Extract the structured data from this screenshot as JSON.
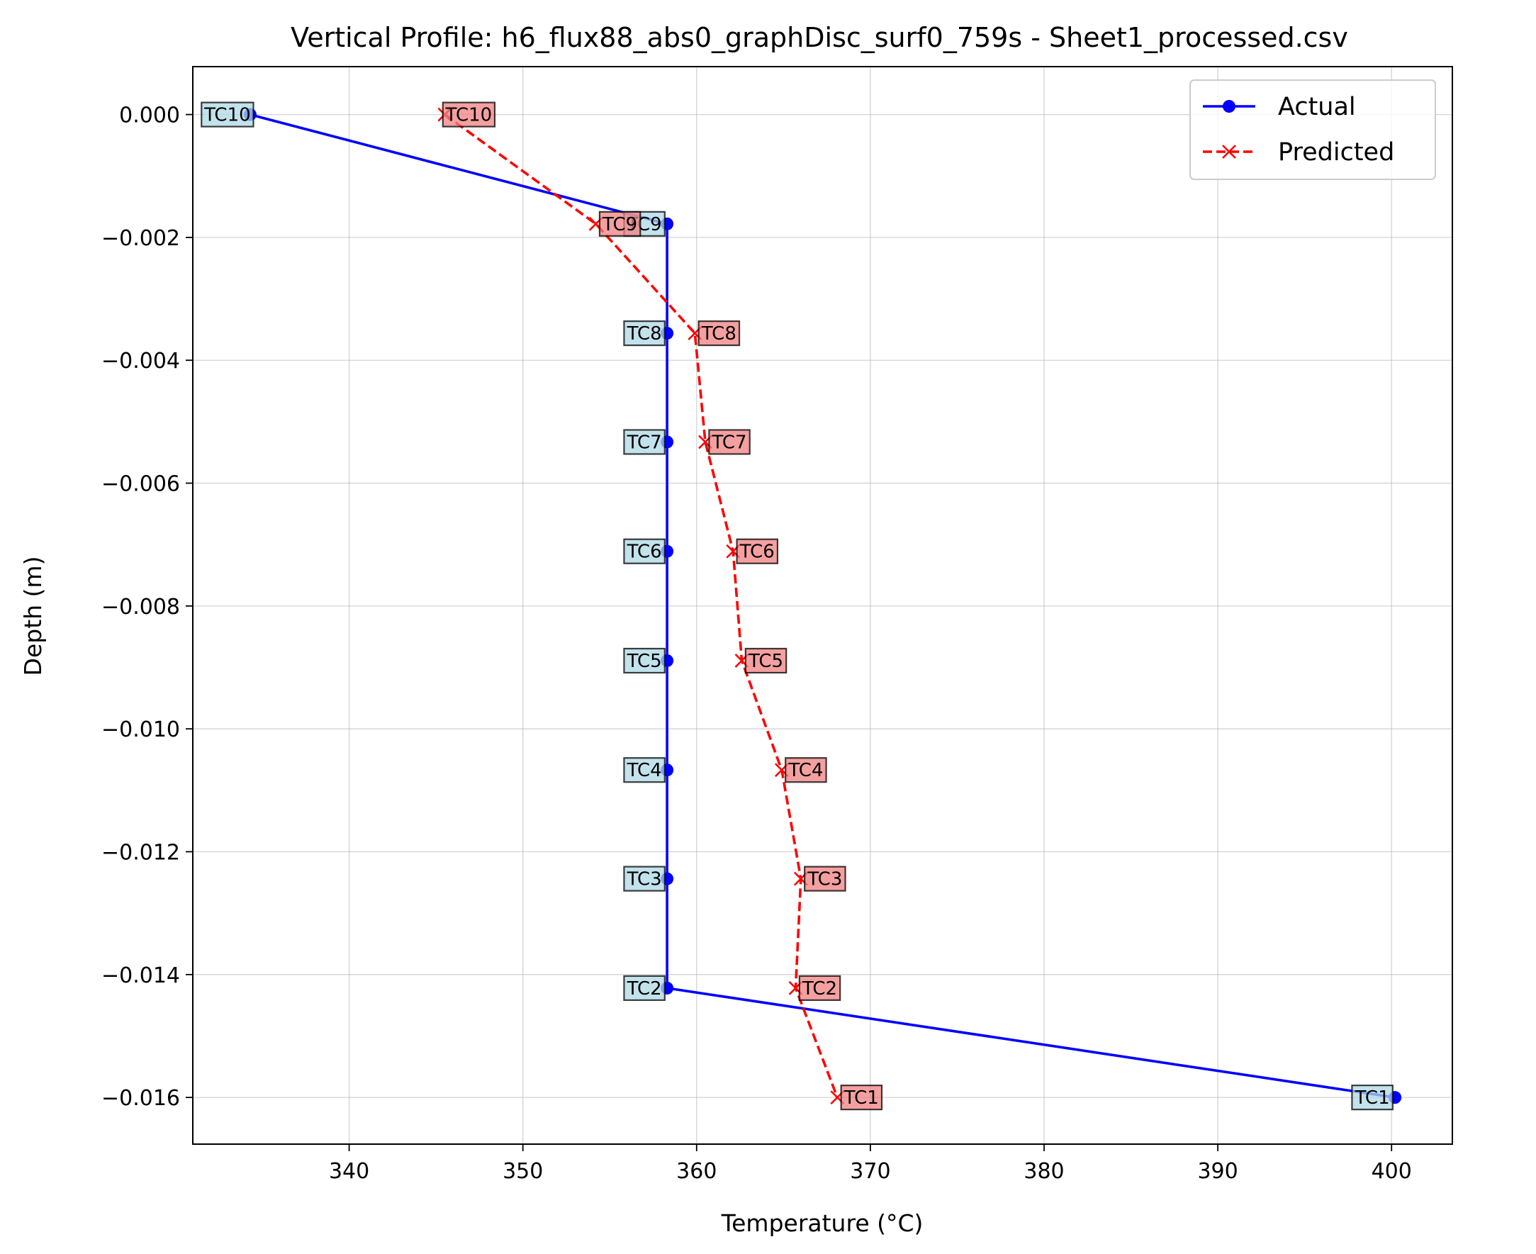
{
  "chart_data": {
    "type": "line",
    "title": "Vertical Profile: h6_flux88_abs0_graphDisc_surf0_759s - Sheet1_processed.csv",
    "xlabel": "Temperature (°C)",
    "ylabel": "Depth (m)",
    "xlim": [
      331,
      403.5
    ],
    "ylim": [
      -0.01676,
      0.00078
    ],
    "xticks": [
      340,
      350,
      360,
      370,
      380,
      390,
      400
    ],
    "xtick_labels": [
      "340",
      "350",
      "360",
      "370",
      "380",
      "390",
      "400"
    ],
    "yticks": [
      0.0,
      -0.002,
      -0.004,
      -0.006,
      -0.008,
      -0.01,
      -0.012,
      -0.014,
      -0.016
    ],
    "ytick_labels": [
      "0.000",
      "−0.002",
      "−0.004",
      "−0.006",
      "−0.008",
      "−0.010",
      "−0.012",
      "−0.014",
      "−0.016"
    ],
    "grid": true,
    "legend_position": "top-right",
    "series": [
      {
        "name": "Actual",
        "color": "#0000ff",
        "style": "solid",
        "marker": "circle",
        "label_bg": "#add8e6",
        "points": [
          {
            "label": "TC10",
            "x": 334.3,
            "y": 0.0
          },
          {
            "label": "TC9",
            "x": 358.3,
            "y": -0.00178
          },
          {
            "label": "TC8",
            "x": 358.3,
            "y": -0.00356
          },
          {
            "label": "TC7",
            "x": 358.3,
            "y": -0.00533
          },
          {
            "label": "TC6",
            "x": 358.3,
            "y": -0.00711
          },
          {
            "label": "TC5",
            "x": 358.3,
            "y": -0.00889
          },
          {
            "label": "TC4",
            "x": 358.3,
            "y": -0.01067
          },
          {
            "label": "TC3",
            "x": 358.3,
            "y": -0.01244
          },
          {
            "label": "TC2",
            "x": 358.3,
            "y": -0.01422
          },
          {
            "label": "TC1",
            "x": 400.2,
            "y": -0.016
          }
        ]
      },
      {
        "name": "Predicted",
        "color": "#ff0000",
        "style": "dashed",
        "marker": "x",
        "label_bg": "#f08080",
        "points": [
          {
            "label": "TC10",
            "x": 345.5,
            "y": 0.0
          },
          {
            "label": "TC9",
            "x": 354.2,
            "y": -0.00178
          },
          {
            "label": "TC8",
            "x": 359.9,
            "y": -0.00356
          },
          {
            "label": "TC7",
            "x": 360.5,
            "y": -0.00533
          },
          {
            "label": "TC6",
            "x": 362.1,
            "y": -0.00711
          },
          {
            "label": "TC5",
            "x": 362.6,
            "y": -0.00889
          },
          {
            "label": "TC4",
            "x": 364.9,
            "y": -0.01067
          },
          {
            "label": "TC3",
            "x": 366.0,
            "y": -0.01244
          },
          {
            "label": "TC2",
            "x": 365.7,
            "y": -0.01422
          },
          {
            "label": "TC1",
            "x": 368.1,
            "y": -0.016
          }
        ]
      }
    ]
  }
}
